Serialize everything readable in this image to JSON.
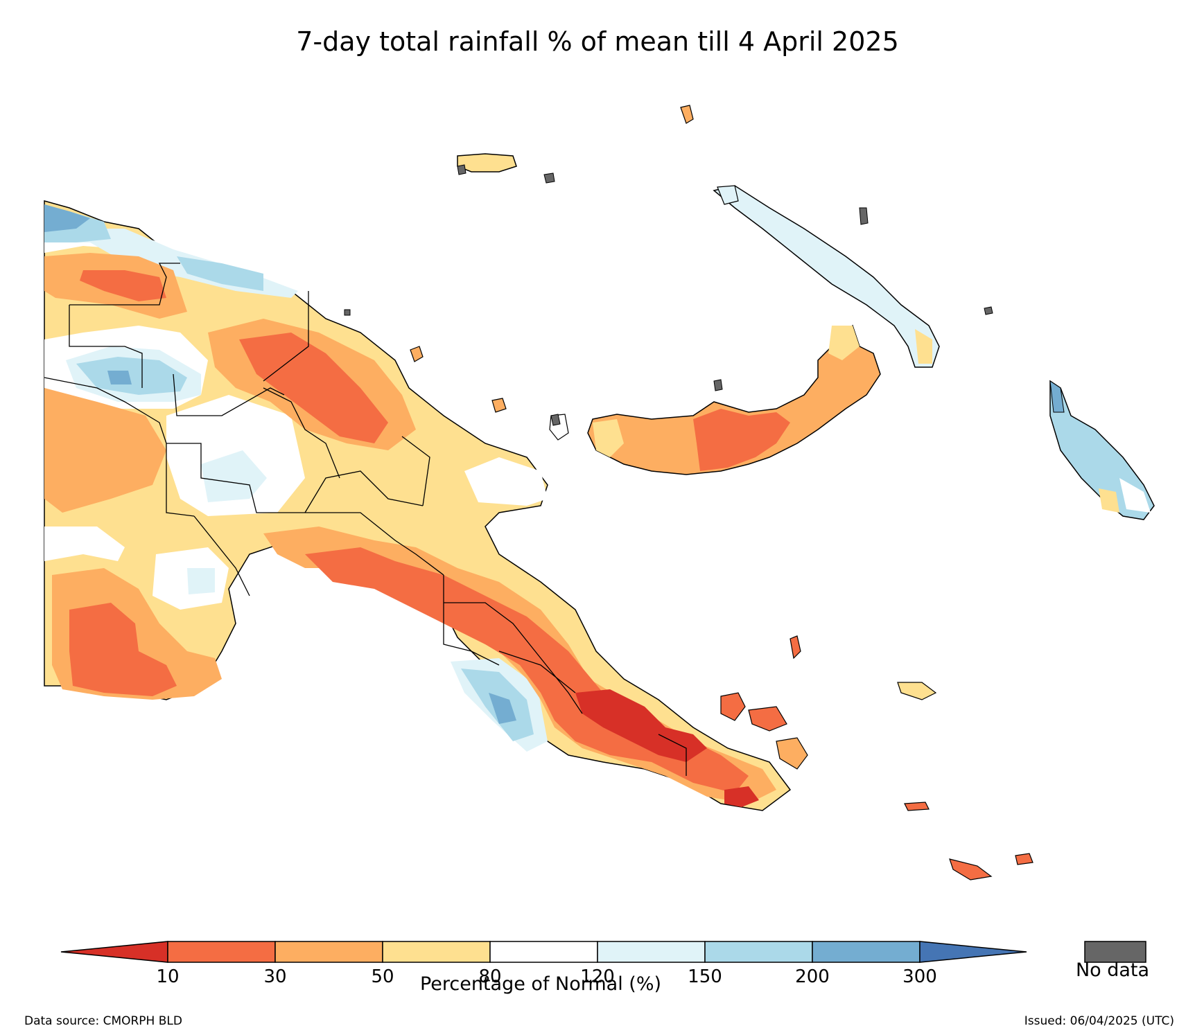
{
  "title": "7-day total rainfall % of mean till 4 April 2025",
  "colorbar": {
    "label": "Percentage of Normal (%)",
    "ticks": [
      "10",
      "30",
      "50",
      "80",
      "120",
      "150",
      "200",
      "300"
    ],
    "colors": {
      "below_10": "#d73027",
      "c10_30": "#f46d43",
      "c30_50": "#fdae61",
      "c50_80": "#fee090",
      "c80_120": "#ffffff",
      "c120_150": "#e0f3f8",
      "c150_200": "#abd9e9",
      "c200_300": "#74add1",
      "above_300": "#4575b4"
    }
  },
  "legend": {
    "nodata_label": "No data",
    "nodata_color": "#666666"
  },
  "footer": {
    "source": "Data source: CMORPH BLD",
    "issued": "Issued: 06/04/2025 (UTC)"
  }
}
